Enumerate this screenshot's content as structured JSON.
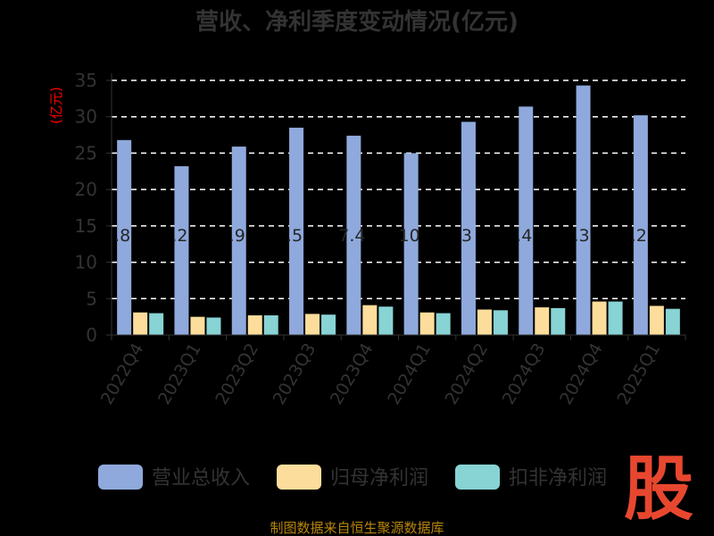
{
  "chart_data": {
    "type": "bar",
    "title": "营收、净利季度变动情况(亿元)",
    "ylabel": "(亿元)",
    "xlabel": "",
    "ylim": [
      0,
      35
    ],
    "yticks": [
      0,
      5,
      10,
      15,
      20,
      25,
      30,
      35
    ],
    "grid": true,
    "legend_position": "bottom",
    "categories": [
      "2022Q4",
      "2023Q1",
      "2023Q2",
      "2023Q3",
      "2023Q4",
      "2024Q1",
      "2024Q2",
      "2024Q3",
      "2024Q4",
      "2025Q1"
    ],
    "series": [
      {
        "name": "营业总收入",
        "color": "#8fa9dc",
        "values": [
          26.8,
          23.2,
          25.9,
          28.5,
          27.4,
          25.0,
          29.3,
          31.4,
          34.3,
          30.2
        ],
        "labels": [
          ".8",
          ".2",
          ".9",
          ".5",
          "7.4",
          "10",
          "3",
          ".4",
          ".3",
          ".2"
        ]
      },
      {
        "name": "归母净利润",
        "color": "#fddd9b",
        "values": [
          3.1,
          2.5,
          2.7,
          2.9,
          4.1,
          3.1,
          3.5,
          3.8,
          4.6,
          4.0
        ]
      },
      {
        "name": "扣非净利润",
        "color": "#88d3d4",
        "values": [
          3.0,
          2.4,
          2.7,
          2.8,
          3.9,
          3.0,
          3.4,
          3.7,
          4.6,
          3.6
        ]
      }
    ]
  },
  "colors": {
    "background": "#000000",
    "ylabel": "#ff0000",
    "source": "#b8860b",
    "watermark": "#e8472f"
  },
  "source_text": "制图数据来自恒生聚源数据库",
  "watermark_text": "股"
}
